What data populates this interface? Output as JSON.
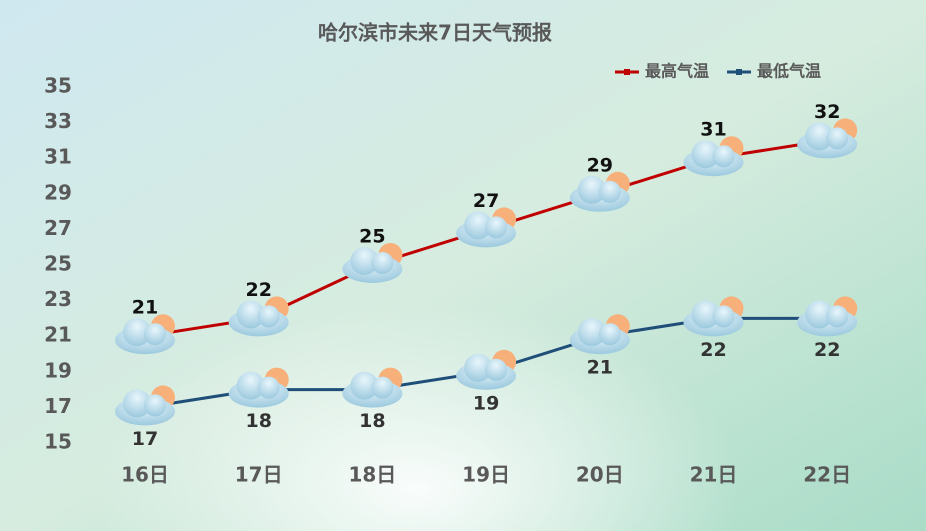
{
  "chart_data": {
    "type": "line",
    "title": "哈尔滨市未来7日天气预报",
    "categories": [
      "16日",
      "17日",
      "18日",
      "19日",
      "20日",
      "21日",
      "22日"
    ],
    "series": [
      {
        "name": "最高气温",
        "color": "#c00000",
        "values": [
          21,
          22,
          25,
          27,
          29,
          31,
          32
        ]
      },
      {
        "name": "最低气温",
        "color": "#1f4e79",
        "values": [
          17,
          18,
          18,
          19,
          21,
          22,
          22
        ]
      }
    ],
    "ylim": [
      15,
      35
    ],
    "yticks": [
      15,
      17,
      19,
      21,
      23,
      25,
      27,
      29,
      31,
      33,
      35
    ],
    "grid": false,
    "legend": "top-right"
  }
}
